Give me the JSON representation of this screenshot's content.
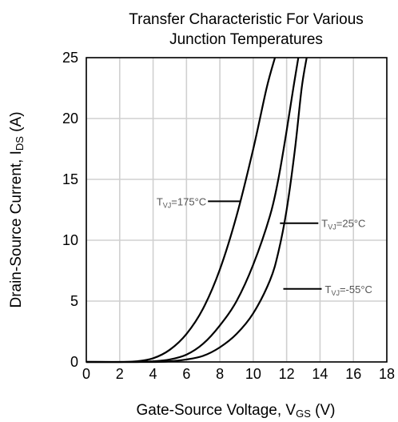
{
  "chart_data": {
    "type": "line",
    "title": [
      "Transfer Characteristic For Various",
      "Junction Temperatures"
    ],
    "xlabel": {
      "main": "Gate-Source Voltage, V",
      "sub": "GS",
      "suffix": " (V)"
    },
    "ylabel": {
      "main": "Drain-Source Current, I",
      "sub": "DS",
      "suffix": " (A)"
    },
    "xlim": [
      0,
      18
    ],
    "ylim": [
      0,
      25
    ],
    "x_ticks": [
      0,
      2,
      4,
      6,
      8,
      10,
      12,
      14,
      16,
      18
    ],
    "y_ticks": [
      0,
      5,
      10,
      15,
      20,
      25
    ],
    "grid": true,
    "series": [
      {
        "name": {
          "main": "T",
          "sub": "VJ",
          "suffix": "=175°C"
        },
        "label_at": [
          9.2,
          13.2
        ],
        "points": [
          [
            0,
            0
          ],
          [
            2,
            0
          ],
          [
            3,
            0.05
          ],
          [
            4,
            0.3
          ],
          [
            5,
            1.0
          ],
          [
            6,
            2.3
          ],
          [
            7,
            4.4
          ],
          [
            8,
            7.6
          ],
          [
            9,
            12.0
          ],
          [
            10,
            17.5
          ],
          [
            10.8,
            22.5
          ],
          [
            11.3,
            25
          ]
        ]
      },
      {
        "name": {
          "main": "T",
          "sub": "VJ",
          "suffix": "=25°C"
        },
        "label_at": [
          11.6,
          11.4
        ],
        "points": [
          [
            0,
            0
          ],
          [
            3,
            0
          ],
          [
            4,
            0.05
          ],
          [
            5,
            0.2
          ],
          [
            6,
            0.6
          ],
          [
            7,
            1.5
          ],
          [
            8,
            3.0
          ],
          [
            9,
            5.0
          ],
          [
            10,
            8.0
          ],
          [
            11,
            12.0
          ],
          [
            11.5,
            15.0
          ],
          [
            12,
            19.0
          ],
          [
            12.4,
            22.5
          ],
          [
            12.7,
            25
          ]
        ]
      },
      {
        "name": {
          "main": "T",
          "sub": "VJ",
          "suffix": "=-55°C"
        },
        "label_at": [
          11.8,
          6.0
        ],
        "points": [
          [
            0,
            0
          ],
          [
            4,
            0
          ],
          [
            5,
            0.05
          ],
          [
            6,
            0.2
          ],
          [
            7,
            0.5
          ],
          [
            8,
            1.2
          ],
          [
            9,
            2.3
          ],
          [
            10,
            4.0
          ],
          [
            11,
            6.7
          ],
          [
            11.5,
            9.0
          ],
          [
            12,
            12.5
          ],
          [
            12.5,
            17.5
          ],
          [
            12.9,
            22.5
          ],
          [
            13.2,
            25
          ]
        ]
      }
    ]
  }
}
